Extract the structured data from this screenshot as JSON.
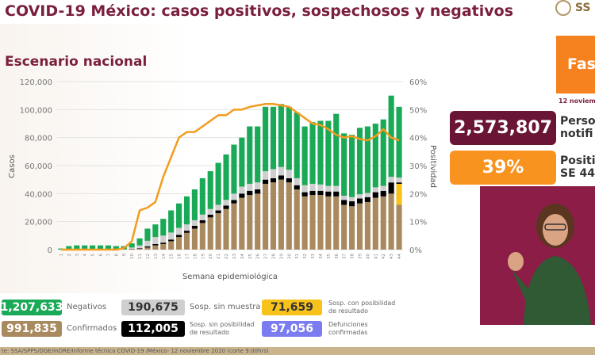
{
  "header": {
    "title": "COVID-19 México: casos positivos, sospechosos y negativos",
    "subtitle": "Escenario nacional",
    "logo_text": "SS"
  },
  "right": {
    "phase": "Fas",
    "date": "12 noviem",
    "people_value": "2,573,807",
    "people_label_1": "Perso",
    "people_label_2": "notifi",
    "pos_value": "39%",
    "pos_label_1": "Positi",
    "pos_label_2": "SE 44"
  },
  "legend": [
    {
      "value": "1,207,633",
      "label": "Negativos",
      "color": "#1aa957"
    },
    {
      "value": "190,675",
      "label": "Sosp. sin muestra",
      "color": "#cfcfcf"
    },
    {
      "value": "71,659",
      "label_1": "Sosp. con posibilidad",
      "label_2": "de resultado",
      "color": "#f7c21a"
    },
    {
      "value": "991,835",
      "label": "Confirmados",
      "color": "#a98a5f"
    },
    {
      "value": "112,005",
      "label_1": "Sosp. sin posibilidad",
      "label_2": "de resultado",
      "color": "#000000"
    },
    {
      "value": "97,056",
      "label_1": "Defunciones",
      "label_2": "confirmadas",
      "color": "#7b7cf0"
    }
  ],
  "source": "te: SSA/SPPS/DGE/InDRE/Informe técnico COVID-19 /México- 12 noviembre 2020 (corte 9:00hrs)",
  "chart_data": {
    "type": "bar",
    "stacked": true,
    "xlabel": "Semana epidemiológica",
    "ylabel": "Casos",
    "y2label": "Positividad",
    "ylim": [
      0,
      120000
    ],
    "y2lim": [
      0,
      60
    ],
    "yticks": [
      "0",
      "20,000",
      "40,000",
      "60,000",
      "80,000",
      "100,000",
      "120,000"
    ],
    "y2ticks": [
      "0%",
      "10%",
      "20%",
      "30%",
      "40%",
      "50%",
      "60%"
    ],
    "categories": [
      "1",
      "2",
      "3",
      "4",
      "5",
      "6",
      "7",
      "8",
      "9",
      "10",
      "11",
      "12",
      "13",
      "14",
      "15",
      "16",
      "17",
      "18",
      "19",
      "20",
      "21",
      "22",
      "23",
      "24",
      "25",
      "26",
      "27",
      "28",
      "29",
      "30",
      "31",
      "32",
      "33",
      "34",
      "35",
      "36",
      "37",
      "38",
      "39",
      "40",
      "41",
      "42",
      "43",
      "44"
    ],
    "grid": true,
    "series": [
      {
        "name": "Confirmados",
        "color": "#a98a5f",
        "values": [
          0,
          0,
          0,
          0,
          0,
          0,
          0,
          0,
          0,
          300,
          600,
          1500,
          3000,
          4000,
          6000,
          9000,
          12000,
          15000,
          19000,
          23000,
          26000,
          29000,
          33000,
          37000,
          39000,
          40000,
          47000,
          48000,
          50000,
          48000,
          43000,
          38000,
          39000,
          39000,
          38000,
          38000,
          32000,
          31000,
          33000,
          34000,
          37000,
          38000,
          40000,
          32000
        ]
      },
      {
        "name": "Sosp. con posibilidad de resultado",
        "color": "#f7c21a",
        "values": [
          0,
          0,
          0,
          0,
          0,
          0,
          0,
          0,
          0,
          0,
          0,
          0,
          0,
          0,
          0,
          0,
          0,
          0,
          0,
          0,
          0,
          0,
          0,
          0,
          0,
          0,
          0,
          0,
          0,
          0,
          0,
          0,
          0,
          0,
          0,
          0,
          0,
          0,
          0,
          0,
          0,
          0,
          0,
          15000
        ]
      },
      {
        "name": "Sosp. sin posibilidad de resultado",
        "color": "#000000",
        "values": [
          0,
          0,
          0,
          0,
          0,
          0,
          0,
          0,
          0,
          200,
          400,
          800,
          1000,
          1000,
          1200,
          1500,
          1500,
          2000,
          2000,
          2000,
          2000,
          2500,
          2500,
          3000,
          3000,
          3000,
          3000,
          3000,
          3000,
          3000,
          3000,
          3000,
          3000,
          3000,
          3500,
          3500,
          3500,
          3500,
          3500,
          3500,
          4000,
          4000,
          8000,
          1000
        ]
      },
      {
        "name": "Sosp. sin muestra",
        "color": "#cfcfcf",
        "values": [
          0,
          0,
          0,
          0,
          0,
          0,
          0,
          0,
          0,
          1000,
          2000,
          4000,
          5000,
          5000,
          5000,
          5000,
          4500,
          4000,
          4000,
          4000,
          4000,
          4000,
          4500,
          5000,
          5000,
          5000,
          6000,
          6500,
          6000,
          6000,
          5000,
          5000,
          5000,
          4500,
          4000,
          4000,
          3000,
          3000,
          3000,
          3000,
          3500,
          3500,
          4000,
          3500
        ]
      },
      {
        "name": "Negativos",
        "color": "#1aa957",
        "values": [
          800,
          2500,
          3000,
          3000,
          3000,
          3000,
          3000,
          2500,
          2500,
          3000,
          5000,
          8700,
          9000,
          12000,
          15800,
          17500,
          20000,
          22000,
          26000,
          27000,
          30000,
          32500,
          35000,
          35000,
          41000,
          40000,
          46000,
          44500,
          45000,
          45000,
          47000,
          42000,
          44000,
          45500,
          46500,
          51500,
          44500,
          44500,
          47500,
          47500,
          45500,
          47500,
          58000,
          50500
        ]
      }
    ],
    "line": {
      "name": "Positividad",
      "color": "#f39c1e",
      "axis": "right",
      "values": [
        0,
        0,
        0,
        0,
        0,
        0,
        0,
        0,
        0.5,
        3,
        14,
        15,
        17,
        26,
        33,
        40,
        42,
        42,
        44,
        46,
        48,
        48,
        50,
        50,
        51,
        51.5,
        52,
        52,
        51.5,
        51,
        49,
        47,
        45,
        44.5,
        43,
        41,
        40,
        40.5,
        39.5,
        39,
        40.5,
        43,
        40,
        39
      ]
    }
  }
}
